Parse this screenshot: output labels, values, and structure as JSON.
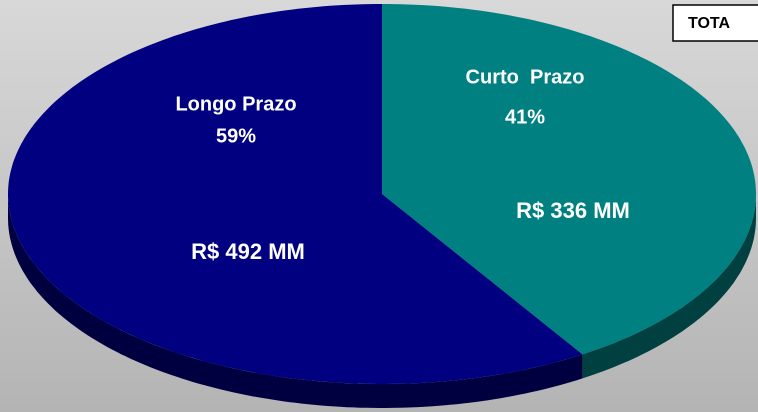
{
  "chart_data": {
    "type": "pie",
    "categories": [
      "Curto  Prazo",
      "Longo Prazo"
    ],
    "values": [
      41,
      59
    ],
    "value_labels": [
      "41%",
      "59%"
    ],
    "amounts": [
      336,
      492
    ],
    "amount_labels": [
      "R$ 336 MM",
      "R$ 492 MM"
    ],
    "colors": [
      "#008080",
      "#000080"
    ],
    "annotation": "TOTA"
  }
}
